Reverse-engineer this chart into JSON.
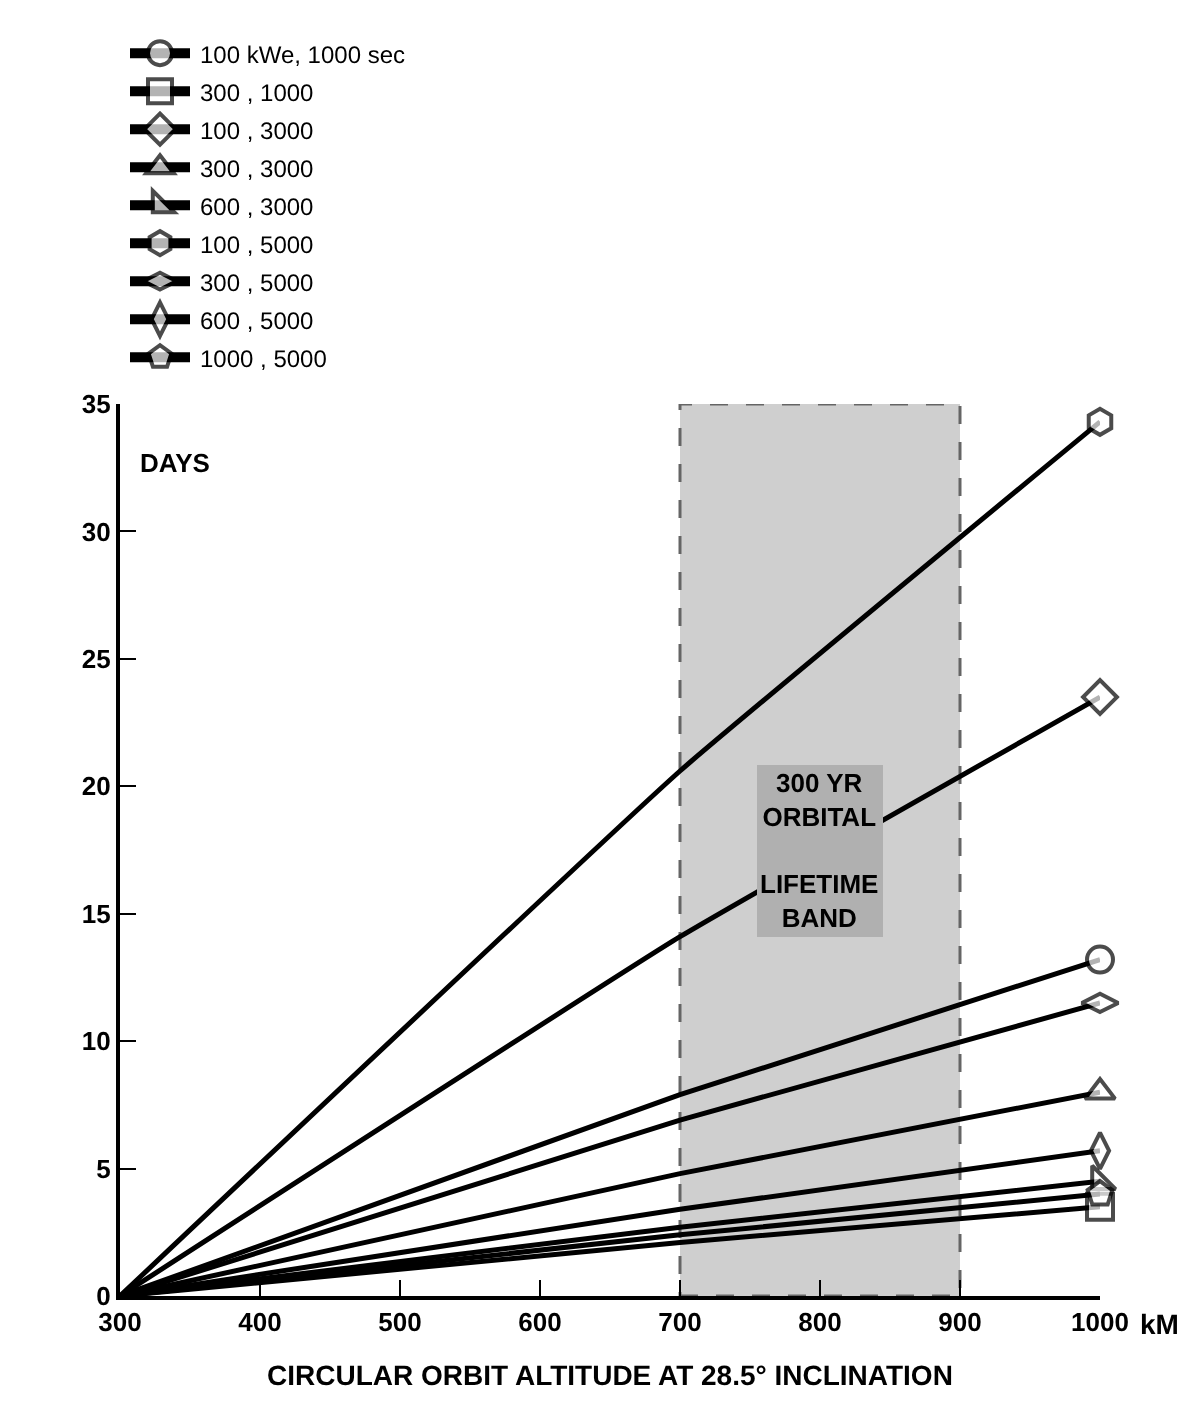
{
  "chart_data": {
    "type": "line",
    "xlabel": "CIRCULAR ORBIT ALTITUDE AT 28.5° INCLINATION",
    "ylabel": "DAYS",
    "x": [
      300,
      700,
      1000
    ],
    "xlim": [
      300,
      1000
    ],
    "xticks": [
      300,
      400,
      500,
      600,
      700,
      800,
      900,
      1000
    ],
    "ylim": [
      0,
      35
    ],
    "yticks": [
      0,
      5,
      10,
      15,
      20,
      25,
      30,
      35
    ],
    "grid": false,
    "legend": "top left",
    "line_style": "solid",
    "series": [
      {
        "name": "100 kWe, 1000 sec",
        "color": "#000000",
        "values": [
          0,
          7.9,
          13.2
        ]
      },
      {
        "name": "300 , 1000",
        "color": "#000000",
        "values": [
          0,
          2.1,
          3.5
        ]
      },
      {
        "name": "100 , 3000",
        "color": "#000000",
        "values": [
          0,
          14.1,
          23.5
        ]
      },
      {
        "name": "300 , 3000",
        "color": "#000000",
        "values": [
          0,
          4.8,
          8.0
        ]
      },
      {
        "name": "600 , 3000",
        "color": "#000000",
        "values": [
          0,
          2.7,
          4.5
        ]
      },
      {
        "name": "100 , 5000",
        "color": "#000000",
        "values": [
          0,
          20.6,
          34.3
        ]
      },
      {
        "name": "300 , 5000",
        "color": "#000000",
        "values": [
          0,
          6.9,
          11.5
        ]
      },
      {
        "name": "600 , 5000",
        "color": "#000000",
        "values": [
          0,
          3.4,
          5.7
        ]
      },
      {
        "name": "1000 , 5000",
        "color": "#000000",
        "values": [
          0,
          2.4,
          4.0
        ]
      }
    ],
    "bands": [
      {
        "axis": "x",
        "from": 700,
        "to": 900,
        "label": "300 YR\nORBITAL\n\nLIFETIME\nBAND",
        "color": "#b0b0b0"
      }
    ],
    "annotations": [
      "kM"
    ]
  }
}
